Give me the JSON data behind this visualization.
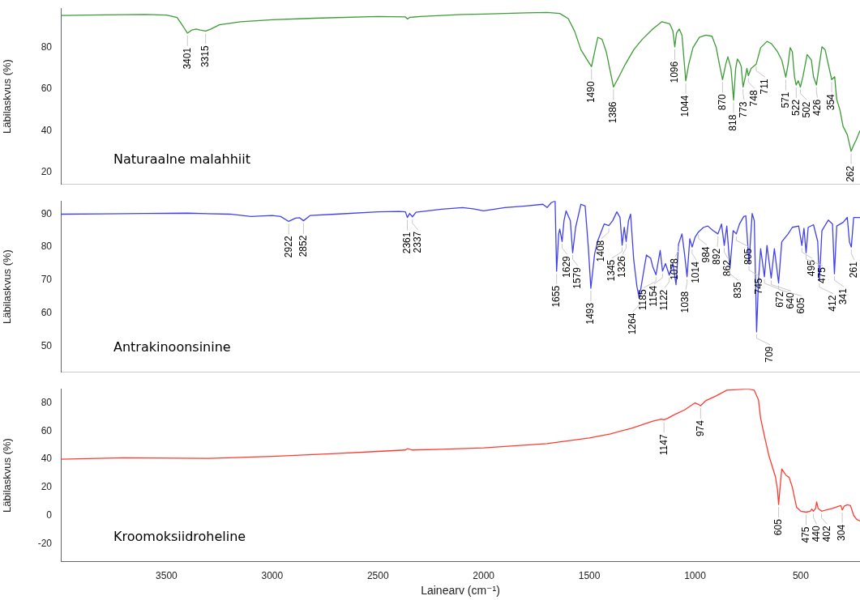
{
  "chart_data": [
    {
      "type": "line",
      "title": "Naturaalne malahhiit",
      "ylabel": "Läbilaskvus (%)",
      "xlim": [
        4000,
        220
      ],
      "ylim": [
        14,
        99
      ],
      "yticks": [
        20,
        40,
        60,
        80
      ],
      "tick_labels": "y",
      "grid": false,
      "legend": false,
      "marker": "none",
      "series": [
        {
          "color": "#3c9c35",
          "x": [
            4000,
            3800,
            3600,
            3500,
            3450,
            3420,
            3401,
            3380,
            3360,
            3340,
            3315,
            3290,
            3250,
            3150,
            3000,
            2800,
            2500,
            2370,
            2360,
            2350,
            2300,
            2100,
            2000,
            1800,
            1700,
            1640,
            1600,
            1570,
            1540,
            1510,
            1490,
            1475,
            1460,
            1440,
            1420,
            1400,
            1386,
            1360,
            1330,
            1290,
            1250,
            1200,
            1157,
            1120,
            1105,
            1096,
            1088,
            1075,
            1062,
            1044,
            1030,
            1010,
            980,
            950,
            920,
            900,
            885,
            870,
            855,
            845,
            830,
            818,
            808,
            800,
            790,
            782,
            773,
            762,
            755,
            748,
            735,
            711,
            690,
            660,
            640,
            610,
            590,
            571,
            560,
            550,
            540,
            530,
            522,
            512,
            502,
            490,
            470,
            450,
            440,
            426,
            412,
            400,
            385,
            370,
            354,
            340,
            330,
            315,
            300,
            280,
            262,
            250,
            240,
            220
          ],
          "values": [
            95.5,
            95.8,
            96,
            95.7,
            94.5,
            90,
            87,
            88.5,
            89,
            88.5,
            88,
            89,
            91,
            92.5,
            93.5,
            94.2,
            95,
            94.8,
            93.8,
            94.6,
            95,
            96,
            96.2,
            96.8,
            97,
            96.5,
            94,
            88,
            79,
            74,
            70.8,
            78,
            85,
            84,
            78,
            68,
            61,
            66,
            72,
            79,
            84,
            89,
            92.5,
            91.5,
            88,
            80.4,
            87,
            89,
            86,
            64,
            72,
            80,
            85,
            86,
            85.5,
            80,
            72,
            64.6,
            72,
            75.6,
            70,
            54.7,
            70,
            74.5,
            73,
            71,
            61,
            66,
            70,
            66.5,
            70,
            72,
            80,
            83,
            82,
            78,
            74,
            65.7,
            72,
            80,
            78,
            66,
            62,
            64,
            61,
            66,
            76.7,
            74,
            66,
            62,
            72,
            80.4,
            79,
            72,
            64.6,
            66,
            55,
            50,
            42,
            38,
            30,
            33,
            35,
            40
          ]
        }
      ],
      "annotations": [
        {
          "text": "3401",
          "x": 3401,
          "y": 87
        },
        {
          "text": "3315",
          "x": 3315,
          "y": 88
        },
        {
          "text": "1490",
          "x": 1490,
          "y": 70.8
        },
        {
          "text": "1386",
          "x": 1386,
          "y": 61
        },
        {
          "text": "1096",
          "x": 1096,
          "y": 80.4
        },
        {
          "text": "1044",
          "x": 1044,
          "y": 64
        },
        {
          "text": "870",
          "x": 870,
          "y": 64.6
        },
        {
          "text": "818",
          "x": 818,
          "y": 54.7
        },
        {
          "text": "773",
          "x": 773,
          "y": 61
        },
        {
          "text": "748",
          "x": 748,
          "y": 66.5
        },
        {
          "text": "711",
          "x": 711,
          "y": 72
        },
        {
          "text": "571",
          "x": 571,
          "y": 65.7
        },
        {
          "text": "522",
          "x": 522,
          "y": 62
        },
        {
          "text": "502",
          "x": 502,
          "y": 61
        },
        {
          "text": "426",
          "x": 426,
          "y": 62
        },
        {
          "text": "354",
          "x": 354,
          "y": 64.6
        },
        {
          "text": "262",
          "x": 262,
          "y": 30
        }
      ]
    },
    {
      "type": "line",
      "title": "Antrakinoonsinine",
      "ylabel": "Läbilaskvus (%)",
      "xlim": [
        4000,
        220
      ],
      "ylim": [
        42,
        94
      ],
      "yticks": [
        50,
        60,
        70,
        80,
        90
      ],
      "tick_labels": "y",
      "grid": false,
      "legend": false,
      "marker": "none",
      "series": [
        {
          "color": "#4040f0",
          "x": [
            4000,
            3800,
            3600,
            3400,
            3200,
            3100,
            3000,
            2960,
            2922,
            2890,
            2870,
            2852,
            2820,
            2700,
            2500,
            2400,
            2370,
            2361,
            2350,
            2337,
            2320,
            2200,
            2100,
            2050,
            2000,
            1900,
            1800,
            1720,
            1700,
            1680,
            1662,
            1655,
            1645,
            1640,
            1629,
            1620,
            1610,
            1590,
            1579,
            1565,
            1540,
            1520,
            1505,
            1493,
            1475,
            1460,
            1430,
            1408,
            1390,
            1370,
            1355,
            1345,
            1335,
            1326,
            1315,
            1305,
            1290,
            1275,
            1264,
            1250,
            1230,
            1210,
            1200,
            1185,
            1165,
            1154,
            1140,
            1122,
            1105,
            1090,
            1078,
            1062,
            1050,
            1038,
            1025,
            1014,
            1000,
            984,
            960,
            940,
            915,
            892,
            875,
            862,
            850,
            835,
            820,
            805,
            790,
            770,
            760,
            745,
            730,
            720,
            709,
            700,
            690,
            672,
            660,
            640,
            625,
            605,
            590,
            560,
            540,
            510,
            495,
            485,
            475,
            465,
            440,
            420,
            412,
            400,
            370,
            350,
            341,
            330,
            300,
            280,
            270,
            261,
            250,
            220
          ],
          "values": [
            90,
            90.1,
            90.2,
            90.3,
            90,
            89.3,
            89.6,
            89.3,
            87.8,
            88.8,
            88.9,
            88,
            89.6,
            90,
            90.7,
            90.8,
            90.7,
            89,
            90.2,
            89.2,
            90.6,
            91.5,
            92,
            91.6,
            91,
            92,
            92.5,
            93,
            92,
            93.5,
            94,
            72.7,
            84,
            85.5,
            81.7,
            88,
            91,
            88,
            78.3,
            86,
            93,
            92.5,
            80,
            67.5,
            78,
            82,
            87,
            86.5,
            88,
            90.7,
            89,
            80.6,
            86,
            81.7,
            88,
            90,
            76,
            68,
            64.4,
            70,
            77.6,
            76.6,
            74,
            71.6,
            79,
            72.7,
            75,
            71.5,
            75,
            68.6,
            81,
            84,
            78,
            71,
            82.5,
            80,
            83,
            84.6,
            86,
            86.4,
            85,
            84,
            87,
            80.5,
            86.4,
            73.8,
            85,
            84,
            87,
            89.3,
            89.5,
            75,
            90.2,
            88,
            54.3,
            70,
            79.5,
            71,
            80.5,
            70.6,
            79.5,
            69.1,
            81.6,
            84,
            86,
            86.4,
            80.5,
            85.7,
            78.3,
            86,
            86.8,
            81.7,
            69.8,
            85,
            88.2,
            87,
            71.9,
            86.4,
            87.5,
            89,
            81.6,
            80,
            89,
            89
          ]
        }
      ],
      "annotations": [
        {
          "text": "2922",
          "x": 2922,
          "y": 87.8
        },
        {
          "text": "2852",
          "x": 2852,
          "y": 88
        },
        {
          "text": "2361",
          "x": 2361,
          "y": 89
        },
        {
          "text": "2337",
          "x": 2337,
          "y": 89.2
        },
        {
          "text": "1655",
          "x": 1655,
          "y": 72.7
        },
        {
          "text": "1629",
          "x": 1629,
          "y": 81.7
        },
        {
          "text": "1579",
          "x": 1579,
          "y": 78.3
        },
        {
          "text": "1493",
          "x": 1493,
          "y": 67.5
        },
        {
          "text": "1408",
          "x": 1408,
          "y": 86.5
        },
        {
          "text": "1345",
          "x": 1345,
          "y": 80.6
        },
        {
          "text": "1326",
          "x": 1326,
          "y": 81.7
        },
        {
          "text": "1264",
          "x": 1264,
          "y": 64.4
        },
        {
          "text": "1185",
          "x": 1185,
          "y": 71.6
        },
        {
          "text": "1154",
          "x": 1154,
          "y": 72.7
        },
        {
          "text": "1122",
          "x": 1122,
          "y": 71.5
        },
        {
          "text": "1078",
          "x": 1078,
          "y": 81
        },
        {
          "text": "1038",
          "x": 1038,
          "y": 71
        },
        {
          "text": "1014",
          "x": 1014,
          "y": 80
        },
        {
          "text": "984",
          "x": 984,
          "y": 84.6
        },
        {
          "text": "892",
          "x": 892,
          "y": 84
        },
        {
          "text": "862",
          "x": 862,
          "y": 80.5
        },
        {
          "text": "835",
          "x": 835,
          "y": 73.8
        },
        {
          "text": "805",
          "x": 805,
          "y": 84
        },
        {
          "text": "745",
          "x": 745,
          "y": 75
        },
        {
          "text": "709",
          "x": 709,
          "y": 54.3
        },
        {
          "text": "672",
          "x": 672,
          "y": 71
        },
        {
          "text": "640",
          "x": 640,
          "y": 70.6
        },
        {
          "text": "605",
          "x": 605,
          "y": 69.1
        },
        {
          "text": "495",
          "x": 495,
          "y": 80.5
        },
        {
          "text": "475",
          "x": 475,
          "y": 78.3
        },
        {
          "text": "412",
          "x": 412,
          "y": 69.8
        },
        {
          "text": "341",
          "x": 341,
          "y": 71.9
        },
        {
          "text": "261",
          "x": 261,
          "y": 80
        }
      ]
    },
    {
      "type": "line",
      "title": "Kroomoksiidroheline",
      "ylabel": "Läbilaskvus (%)",
      "xlabel": "Lainearv (cm⁻¹)",
      "xlim": [
        4000,
        220
      ],
      "xticks": [
        3500,
        3000,
        2500,
        2000,
        1500,
        1000,
        500
      ],
      "ylim": [
        -33,
        90
      ],
      "yticks": [
        -20,
        0,
        20,
        40,
        60,
        80
      ],
      "grid": false,
      "legend": false,
      "marker": "none",
      "series": [
        {
          "color": "#ff3b30",
          "x": [
            4000,
            3700,
            3300,
            3000,
            2700,
            2500,
            2370,
            2360,
            2340,
            2200,
            2000,
            1800,
            1700,
            1600,
            1500,
            1400,
            1300,
            1200,
            1160,
            1147,
            1130,
            1100,
            1050,
            1000,
            985,
            974,
            960,
            950,
            900,
            850,
            800,
            750,
            720,
            700,
            690,
            670,
            650,
            620,
            610,
            605,
            598,
            590,
            570,
            555,
            540,
            520,
            500,
            475,
            455,
            448,
            440,
            430,
            425,
            418,
            402,
            350,
            320,
            310,
            304,
            295,
            280,
            265,
            250,
            235,
            220
          ],
          "values": [
            40,
            41,
            40.5,
            42,
            44,
            45.5,
            46.5,
            47.5,
            46.5,
            47,
            48,
            50,
            51,
            53,
            55,
            58,
            62,
            67,
            68.5,
            68,
            69,
            71.5,
            75,
            80,
            79,
            78,
            80,
            81.5,
            85,
            89,
            89.5,
            90,
            89,
            82,
            69,
            55,
            42,
            27.5,
            18,
            7.7,
            20,
            33,
            28.5,
            27,
            20,
            5.8,
            3,
            2.3,
            3,
            4.5,
            3,
            5,
            9.6,
            5,
            3,
            5,
            6.5,
            7,
            3.8,
            6.5,
            7.5,
            7,
            0,
            -3,
            -4
          ]
        }
      ],
      "annotations": [
        {
          "text": "1147",
          "x": 1147,
          "y": 68
        },
        {
          "text": "974",
          "x": 974,
          "y": 78
        },
        {
          "text": "605",
          "x": 605,
          "y": 7.7
        },
        {
          "text": "475",
          "x": 475,
          "y": 2.3
        },
        {
          "text": "440",
          "x": 440,
          "y": 3
        },
        {
          "text": "402",
          "x": 402,
          "y": 3
        },
        {
          "text": "304",
          "x": 304,
          "y": 3.8
        }
      ]
    }
  ]
}
